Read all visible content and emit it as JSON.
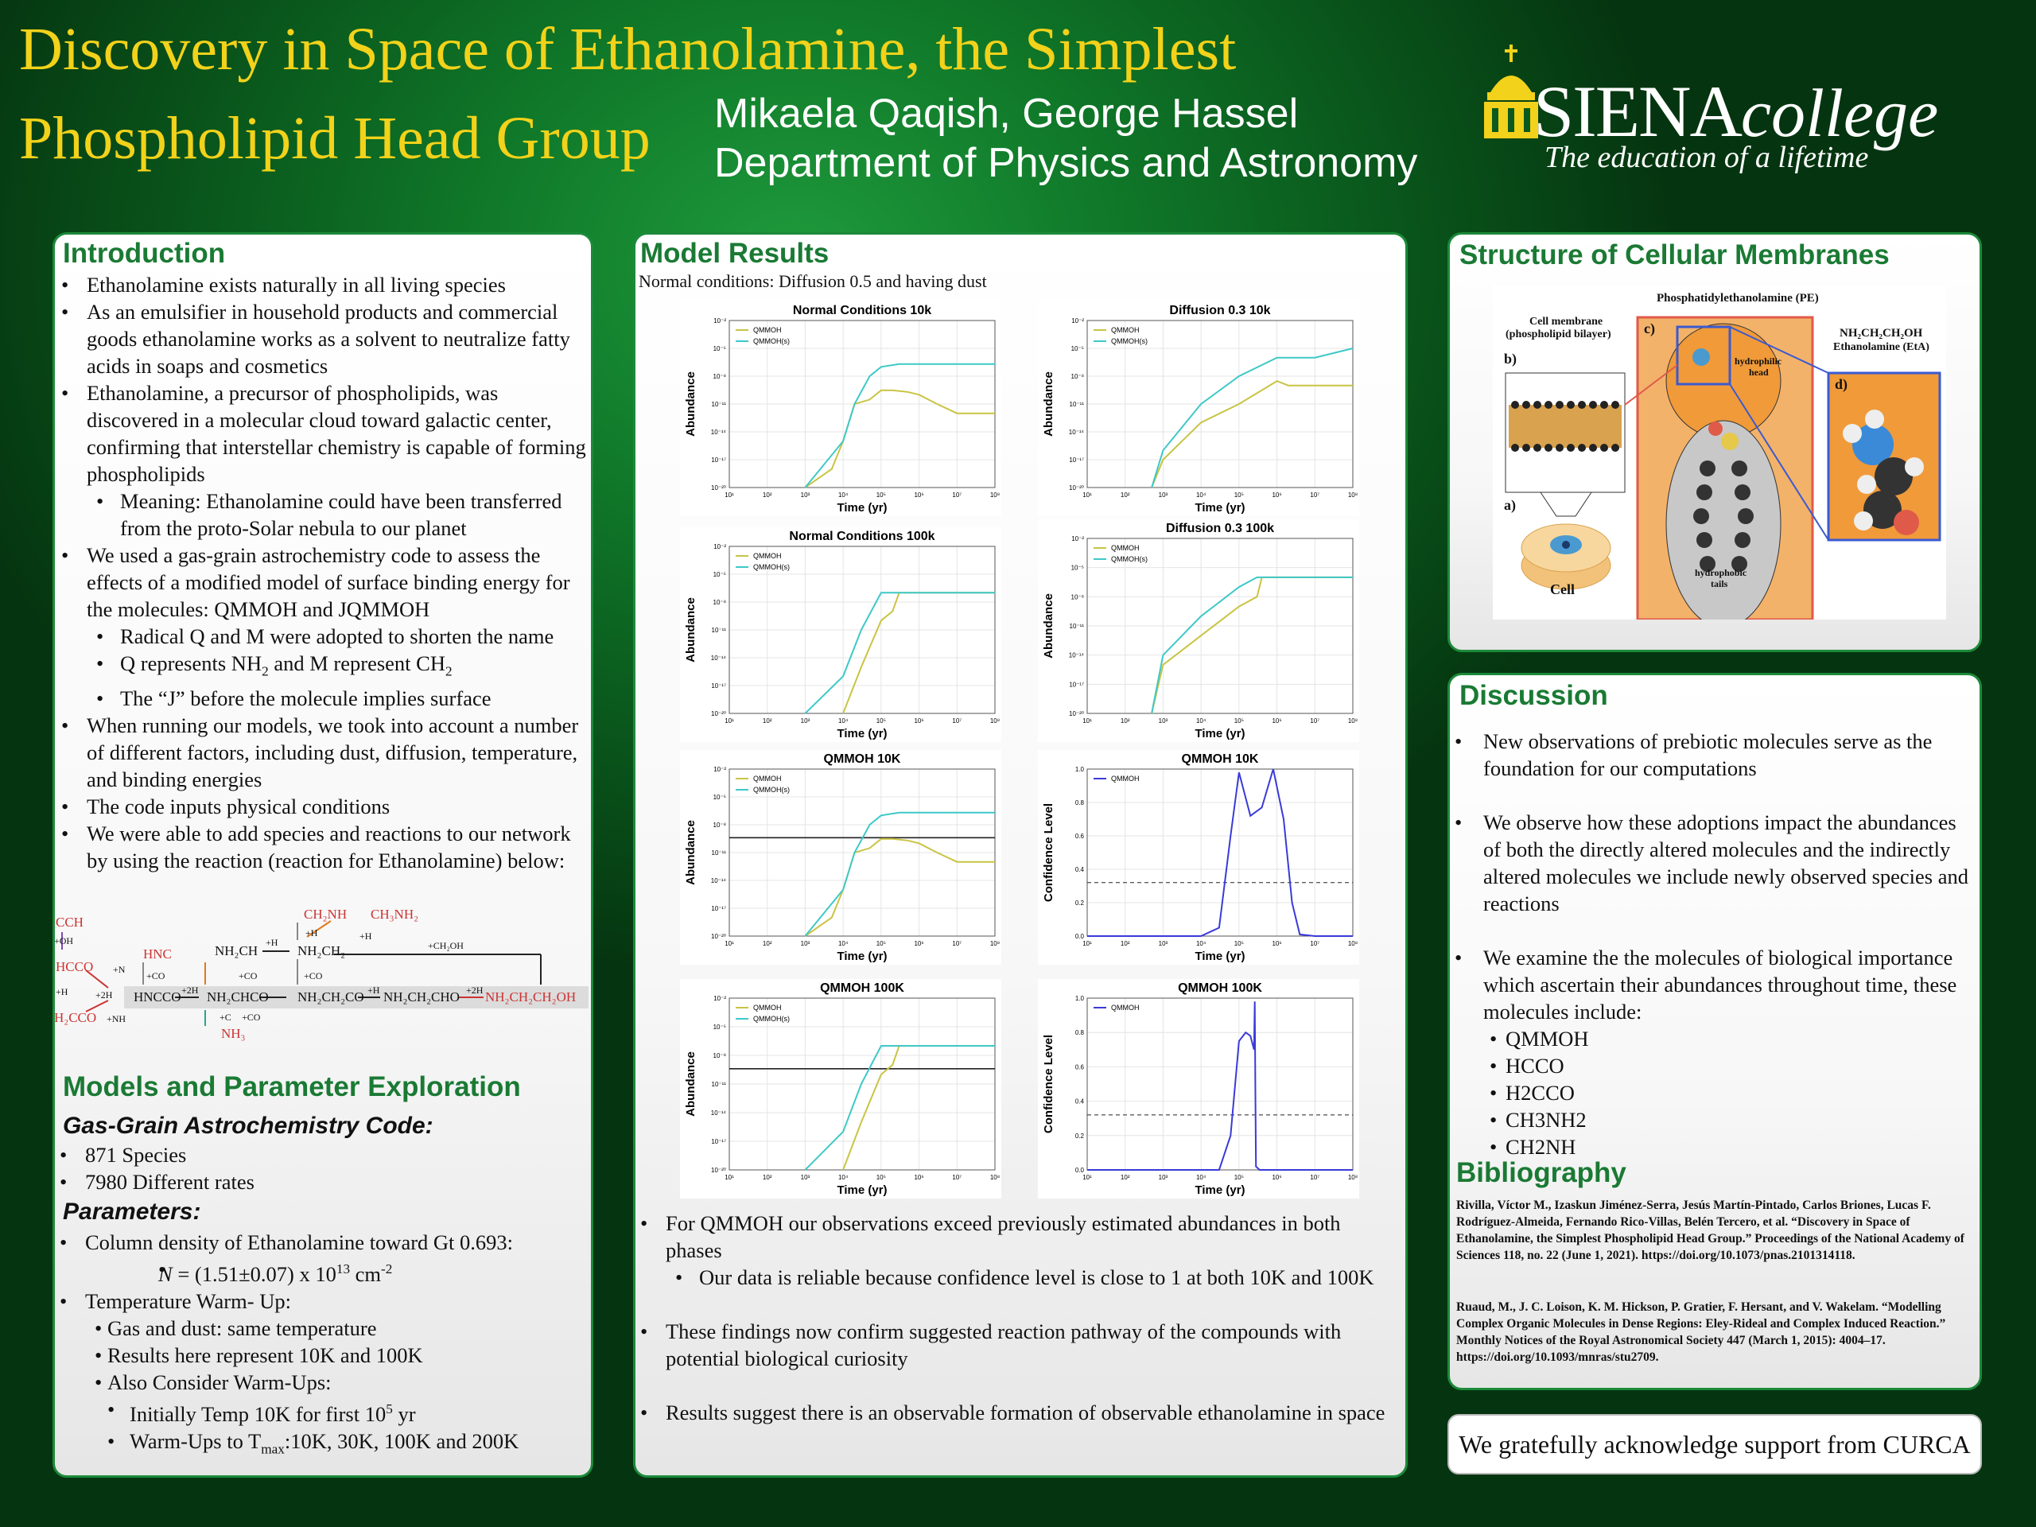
{
  "header": {
    "title_line1": "Discovery in Space of Ethanolamine, the Simplest",
    "title_line2": "Phospholipid Head Group",
    "authors": "Mikaela Qaqish, George Hassel",
    "department": "Department of Physics and Astronomy",
    "logo_word": "SIENA",
    "logo_word2": "college",
    "logo_tagline": "The education of a lifetime"
  },
  "intro": {
    "heading": "Introduction",
    "b1": "Ethanolamine exists naturally in all living species",
    "b2": "As an emulsifier in household products and commercial goods ethanolamine works as a solvent to neutralize fatty acids in soaps and cosmetics",
    "b3": "Ethanolamine, a precursor of phospholipids, was discovered in a molecular cloud toward galactic center, confirming that interstellar chemistry is capable of forming phospholipids",
    "b3a": "Meaning: Ethanolamine could have been transferred from the proto-Solar nebula to our planet",
    "b4": "We used a gas-grain astrochemistry code to assess the effects of a modified model of surface binding energy for the molecules: QMMOH and JQMMOH",
    "b4a": "Radical Q and M were adopted to shorten the name",
    "b4b_1": "Q represents NH",
    "b4b_2": " and M represent CH",
    "b4c": "The “J” before the molecule implies surface",
    "b5": "When running our models, we took into account a number of different factors, including dust, diffusion, temperature, and binding energies",
    "b6": "The code inputs physical conditions",
    "b7": "We were able to add species and reactions to our network by using the reaction (reaction for Ethanolamine) below:"
  },
  "reaction": {
    "ccH": "CCH",
    "oh": "+OH",
    "hcco": "HCCO",
    "n": "+N",
    "h": "+H",
    "h2cco": "H₂CCO",
    "p2h": "+2H",
    "nh": "+NH",
    "hnc": "HNC",
    "co": "+CO",
    "hncco": "HNCCO",
    "s2h": "+2H",
    "nh2chco": "NH₂CHCO",
    "c": "+C",
    "co2": "+CO",
    "nh3": "NH₃",
    "nh2ch": "NH₂CH",
    "hh": "+H",
    "coa": "+CO",
    "nh2ch2": "NH₂CH₂",
    "ch2nh": "CH₂NH",
    "ch3nh2": "CH₃NH₂",
    "ha": "+H",
    "hb": "+H",
    "hc": "+H",
    "cob": "+CO",
    "nh2ch2co": "NH₂CH₂CO",
    "hd": "+H",
    "nh2ch2cho": "NH₂CH₂CHO",
    "p2h2": "+2H",
    "eta": "NH₂CH₂CH₂OH",
    "ch2oh": "+CH₂OH"
  },
  "models": {
    "heading": "Models and Parameter Exploration",
    "code_h": "Gas-Grain Astrochemistry Code:",
    "species": "871 Species",
    "rates": "7980 Different rates",
    "params_h": "Parameters:",
    "col": "Column density of Ethanolamine toward Gt 0.693:",
    "n_1": "N",
    "n_2": " = (1.51±0.07) x 10",
    "n_3": "13",
    "n_4": " cm",
    "n_5": "-2",
    "warm": "Temperature Warm- Up:",
    "gas": "Gas and dust: same temperature",
    "res": "Results here represent  10K and 100K",
    "also": "Also Consider Warm-Ups:",
    "init_1": "Initially Temp 10K for first 10",
    "init_2": "5",
    "init_3": " yr",
    "warmups_1": "Warm-Ups to T",
    "warmups_2": "max",
    "warmups_3": ":10K, 30K, 100K and 200K"
  },
  "results": {
    "heading": "Model Results",
    "sub": "Normal conditions: Diffusion 0.5 and having dust",
    "b1": "For QMMOH our observations exceed previously estimated abundances in both phases",
    "b1a": "Our data is reliable because confidence level is close to 1 at both 10K and 100K",
    "b2": "These findings now confirm suggested reaction pathway of the compounds with potential biological curiosity",
    "b3": "Results suggest there is an observable formation of observable ethanolamine in space"
  },
  "chart_data": [
    {
      "type": "line",
      "title": "Normal Conditions 10k",
      "xlabel": "Time (yr)",
      "ylabel": "Abundance",
      "xscale": "log",
      "yscale": "log",
      "xlim": [
        10,
        100000000
      ],
      "ylim": [
        1e-20,
        0.01
      ],
      "legend": "top-left",
      "series": [
        {
          "name": "QMMOH",
          "color": "#c9c444",
          "x": [
            1000,
            5000,
            10000,
            20000,
            50000,
            100000,
            200000,
            500000,
            1000000,
            3000000,
            10000000,
            100000000
          ],
          "y": [
            1e-20,
            1e-18,
            1e-15,
            1e-11,
            3e-11,
            3e-10,
            3e-10,
            2e-10,
            1e-10,
            1e-11,
            1e-12,
            1e-12
          ]
        },
        {
          "name": "QMMOH(s)",
          "color": "#3ec8c8",
          "x": [
            1000,
            10000,
            20000,
            50000,
            100000,
            300000,
            1000000,
            100000000
          ],
          "y": [
            1e-20,
            1e-15,
            1e-11,
            1e-08,
            1e-07,
            2e-07,
            2e-07,
            2e-07
          ]
        }
      ]
    },
    {
      "type": "line",
      "title": "Diffusion 0.3 10k",
      "xlabel": "Time (yr)",
      "ylabel": "Abundance",
      "xscale": "log",
      "yscale": "log",
      "xlim": [
        10,
        100000000
      ],
      "ylim": [
        1e-20,
        0.01
      ],
      "legend": "top-left",
      "series": [
        {
          "name": "QMMOH",
          "color": "#c9c444",
          "x": [
            500,
            1000,
            10000,
            100000,
            1000000,
            2000000,
            10000000,
            100000000
          ],
          "y": [
            1e-20,
            1e-17,
            1e-13,
            1e-11,
            3e-09,
            1e-09,
            1e-09,
            1e-09
          ]
        },
        {
          "name": "QMMOH(s)",
          "color": "#3ec8c8",
          "x": [
            500,
            1000,
            10000,
            100000,
            1000000,
            10000000,
            100000000
          ],
          "y": [
            1e-20,
            1e-16,
            1e-11,
            1e-08,
            1e-06,
            1e-06,
            1e-05
          ]
        }
      ]
    },
    {
      "type": "line",
      "title": "Normal Conditions 100k",
      "xlabel": "Time (yr)",
      "ylabel": "Abundance",
      "xscale": "log",
      "yscale": "log",
      "xlim": [
        10,
        100000000
      ],
      "ylim": [
        1e-20,
        0.01
      ],
      "legend": "top-left",
      "series": [
        {
          "name": "QMMOH",
          "color": "#c9c444",
          "x": [
            10000,
            30000,
            100000,
            200000,
            300000,
            1000000,
            100000000
          ],
          "y": [
            1e-20,
            1e-15,
            1e-10,
            1e-09,
            1e-07,
            1e-07,
            1e-07
          ]
        },
        {
          "name": "QMMOH(s)",
          "color": "#3ec8c8",
          "x": [
            1000,
            10000,
            30000,
            100000,
            150000,
            300000,
            100000000
          ],
          "y": [
            1e-20,
            1e-16,
            1e-11,
            1e-07,
            1e-07,
            1e-07,
            1e-07
          ]
        }
      ]
    },
    {
      "type": "line",
      "title": "Diffusion 0.3 100k",
      "xlabel": "Time (yr)",
      "ylabel": "Abundance",
      "xscale": "log",
      "yscale": "log",
      "xlim": [
        10,
        100000000
      ],
      "ylim": [
        1e-20,
        0.01
      ],
      "legend": "top-left",
      "series": [
        {
          "name": "QMMOH",
          "color": "#c9c444",
          "x": [
            500,
            1000,
            10000,
            100000,
            300000,
            400000,
            1000000,
            100000000
          ],
          "y": [
            1e-20,
            1e-15,
            1e-12,
            1e-09,
            1e-08,
            1e-06,
            1e-06,
            1e-06
          ]
        },
        {
          "name": "QMMOH(s)",
          "color": "#3ec8c8",
          "x": [
            500,
            1000,
            10000,
            100000,
            300000,
            1000000,
            100000000
          ],
          "y": [
            1e-20,
            1e-14,
            1e-10,
            1e-07,
            1e-06,
            1e-06,
            1e-06
          ]
        }
      ]
    },
    {
      "type": "line",
      "title": "QMMOH 10K",
      "xlabel": "Time (yr)",
      "ylabel": "Abundance",
      "xscale": "log",
      "yscale": "log",
      "xlim": [
        10,
        100000000
      ],
      "ylim": [
        1e-20,
        0.01
      ],
      "legend": "top-left",
      "hline": 4e-10,
      "series": [
        {
          "name": "QMMOH",
          "color": "#c9c444",
          "x": [
            1000,
            5000,
            10000,
            20000,
            50000,
            100000,
            200000,
            500000,
            1000000,
            3000000,
            10000000,
            100000000
          ],
          "y": [
            1e-20,
            1e-18,
            1e-15,
            1e-11,
            3e-11,
            3e-10,
            3e-10,
            2e-10,
            1e-10,
            1e-11,
            1e-12,
            1e-12
          ]
        },
        {
          "name": "QMMOH(s)",
          "color": "#3ec8c8",
          "x": [
            1000,
            10000,
            20000,
            50000,
            100000,
            300000,
            1000000,
            100000000
          ],
          "y": [
            1e-20,
            1e-15,
            1e-11,
            1e-08,
            1e-07,
            2e-07,
            2e-07,
            2e-07
          ]
        }
      ]
    },
    {
      "type": "line",
      "title": "QMMOH 10K",
      "xlabel": "Time (yr)",
      "ylabel": "Confidence Level",
      "xscale": "log",
      "yscale": "linear",
      "xlim": [
        10,
        100000000
      ],
      "ylim": [
        0,
        1
      ],
      "legend": "top-left",
      "dashed": 0.32,
      "series": [
        {
          "name": "QMMOH",
          "color": "#3a3ad8",
          "x": [
            10,
            10000,
            30000,
            60000,
            100000,
            200000,
            400000,
            800000,
            1500000,
            2500000,
            4000000,
            10000000,
            100000000
          ],
          "y": [
            0,
            0,
            0.05,
            0.6,
            0.98,
            0.72,
            0.77,
            1.0,
            0.7,
            0.2,
            0.01,
            0,
            0
          ]
        }
      ]
    },
    {
      "type": "line",
      "title": "QMMOH 100K",
      "xlabel": "Time (yr)",
      "ylabel": "Abundance",
      "xscale": "log",
      "yscale": "log",
      "xlim": [
        10,
        100000000
      ],
      "ylim": [
        1e-20,
        0.01
      ],
      "legend": "top-left",
      "hline": 4e-10,
      "series": [
        {
          "name": "QMMOH",
          "color": "#c9c444",
          "x": [
            10000,
            30000,
            100000,
            200000,
            300000,
            1000000,
            100000000
          ],
          "y": [
            1e-20,
            1e-15,
            1e-10,
            1e-09,
            1e-07,
            1e-07,
            1e-07
          ]
        },
        {
          "name": "QMMOH(s)",
          "color": "#3ec8c8",
          "x": [
            1000,
            10000,
            30000,
            100000,
            150000,
            300000,
            100000000
          ],
          "y": [
            1e-20,
            1e-16,
            1e-11,
            1e-07,
            1e-07,
            1e-07,
            1e-07
          ]
        }
      ]
    },
    {
      "type": "line",
      "title": "QMMOH 100K",
      "xlabel": "Time (yr)",
      "ylabel": "Confidence Level",
      "xscale": "log",
      "yscale": "linear",
      "xlim": [
        10,
        100000000
      ],
      "ylim": [
        0,
        1
      ],
      "legend": "top-left",
      "dashed": 0.32,
      "series": [
        {
          "name": "QMMOH",
          "color": "#3a3ad8",
          "x": [
            10,
            30000,
            60000,
            100000,
            150000,
            200000,
            250000,
            260000,
            270000,
            280000,
            350000,
            100000000
          ],
          "y": [
            0,
            0,
            0.2,
            0.75,
            0.8,
            0.78,
            0.7,
            0.98,
            0.5,
            0.02,
            0,
            0
          ]
        }
      ]
    }
  ],
  "membrane": {
    "heading": "Structure of Cellular Membranes",
    "pe": "Phosphatidylethanolamine (PE)",
    "cell_membrane": "Cell membrane",
    "bilayer": "(phospholipid bilayer)",
    "b": "b)",
    "a": "a)",
    "c": "c)",
    "d": "d)",
    "cell": "Cell",
    "head": "hydrophilic",
    "head2": "head",
    "tails": "hydrophobic",
    "tails2": "tails",
    "eta_formula": "NH₂CH₂CH₂OH",
    "eta_name": "Ethanolamine (EtA)"
  },
  "discussion": {
    "heading": "Discussion",
    "b1": "New observations of prebiotic molecules serve as the foundation for our computations",
    "b2": "We observe how these adoptions impact the abundances of both the directly altered molecules and the indirectly altered molecules we include newly observed species and reactions",
    "b3": "We examine the the molecules of biological importance which ascertain their abundances throughout time, these molecules include:",
    "m1": "QMMOH",
    "m2": "HCCO",
    "m3": "H2CCO",
    "m4": "CH3NH2",
    "m5": "CH2NH"
  },
  "biblio": {
    "heading": "Bibliography",
    "ref1": "Rivilla, Víctor M., Izaskun Jiménez-Serra, Jesús Martín-Pintado, Carlos Briones, Lucas F. Rodríguez-Almeida, Fernando Rico-Villas, Belén Tercero, et al. “Discovery in Space of Ethanolamine, the Simplest Phospholipid Head Group.” Proceedings of the National Academy of Sciences 118, no. 22 (June 1, 2021). https://doi.org/10.1073/pnas.2101314118.",
    "ref2": "Ruaud, M., J. C. Loison, K. M. Hickson, P. Gratier, F. Hersant, and V. Wakelam. “Modelling Complex Organic Molecules in Dense Regions: Eley-Rideal and Complex Induced Reaction.” Monthly Notices of the Royal Astronomical Society 447 (March 1, 2015): 4004–17. https://doi.org/10.1093/mnras/stu2709."
  },
  "ack": "We gratefully acknowledge support from CURCA"
}
